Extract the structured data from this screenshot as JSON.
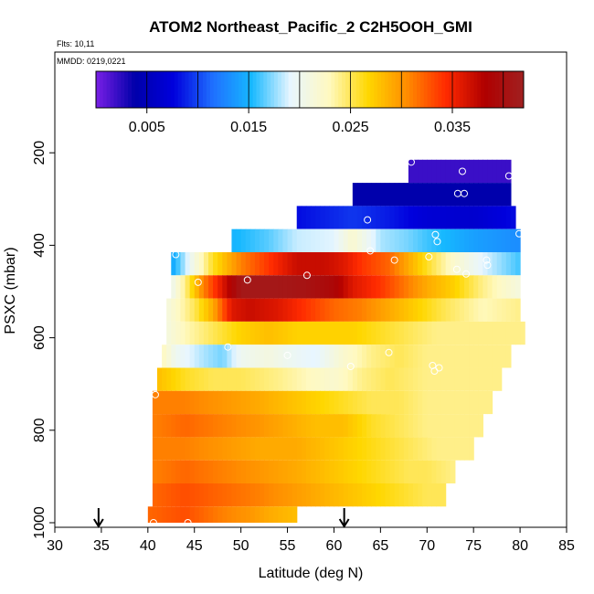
{
  "chart_data": {
    "type": "heatmap",
    "title": "ATOM2 Northeast_Pacific_2 C2H5OOH_GMI",
    "flights_label": "Flts: 10,11",
    "mmdd_label": "MMDD: 0219,0221",
    "xlabel": "Latitude (deg N)",
    "ylabel": "PSXC (mbar)",
    "xlim": [
      30,
      85
    ],
    "ylim": [
      1000,
      0
    ],
    "x_ticks": [
      30,
      35,
      40,
      45,
      50,
      55,
      60,
      65,
      70,
      75,
      80,
      85
    ],
    "y_ticks": [
      200,
      400,
      600,
      800,
      1000
    ],
    "colorbar": {
      "min": 0.0,
      "max": 0.042,
      "tick_values": [
        0.005,
        0.015,
        0.025,
        0.035
      ],
      "tick_labels": [
        "0.005",
        "0.015",
        "0.025",
        "0.035"
      ],
      "divisions": [
        0.0,
        0.005,
        0.01,
        0.015,
        0.02,
        0.025,
        0.03,
        0.035,
        0.04,
        0.042
      ],
      "colors": [
        "#7a1fe6",
        "#0000aa",
        "#0000dd",
        "#1f6fff",
        "#16b8ff",
        "#e8f6ff",
        "#fff9c0",
        "#ffd700",
        "#ff8c00",
        "#ff2a00",
        "#b00000",
        "#a02020"
      ]
    },
    "bands": [
      {
        "p_top": 215,
        "p_bot": 265,
        "lat_min": 68.0,
        "lat_max": 79.0,
        "values": [
          [
            68,
            0.002
          ],
          [
            79,
            0.002
          ]
        ]
      },
      {
        "p_top": 265,
        "p_bot": 315,
        "lat_min": 62.0,
        "lat_max": 79.0,
        "values": [
          [
            62,
            0.004
          ],
          [
            79,
            0.004
          ]
        ]
      },
      {
        "p_top": 315,
        "p_bot": 365,
        "lat_min": 56.0,
        "lat_max": 79.5,
        "values": [
          [
            56,
            0.008
          ],
          [
            62,
            0.0095
          ],
          [
            66,
            0.0085
          ],
          [
            70,
            0.007
          ],
          [
            75,
            0.0065
          ],
          [
            79.5,
            0.008
          ]
        ]
      },
      {
        "p_top": 365,
        "p_bot": 415,
        "lat_min": 49.0,
        "lat_max": 80.0,
        "values": [
          [
            49,
            0.015
          ],
          [
            53,
            0.0165
          ],
          [
            56,
            0.0185
          ],
          [
            60,
            0.019
          ],
          [
            62,
            0.022
          ],
          [
            65,
            0.018
          ],
          [
            68,
            0.017
          ],
          [
            70,
            0.016
          ],
          [
            75,
            0.014
          ],
          [
            80,
            0.013
          ]
        ]
      },
      {
        "p_top": 415,
        "p_bot": 465,
        "lat_min": 42.5,
        "lat_max": 80.0,
        "values": [
          [
            42.5,
            0.014
          ],
          [
            45,
            0.021
          ],
          [
            47,
            0.026
          ],
          [
            50,
            0.031
          ],
          [
            53,
            0.034
          ],
          [
            56,
            0.037
          ],
          [
            59,
            0.037
          ],
          [
            61,
            0.036
          ],
          [
            63,
            0.034
          ],
          [
            66,
            0.032
          ],
          [
            68,
            0.029
          ],
          [
            70,
            0.026
          ],
          [
            73,
            0.022
          ],
          [
            76,
            0.019
          ],
          [
            80,
            0.016
          ]
        ]
      },
      {
        "p_top": 465,
        "p_bot": 515,
        "lat_min": 42.5,
        "lat_max": 80.0,
        "values": [
          [
            42.5,
            0.02
          ],
          [
            44,
            0.024
          ],
          [
            46,
            0.031
          ],
          [
            48,
            0.036
          ],
          [
            50,
            0.041
          ],
          [
            54,
            0.041
          ],
          [
            57,
            0.0405
          ],
          [
            60,
            0.039
          ],
          [
            62,
            0.036
          ],
          [
            65,
            0.034
          ],
          [
            68,
            0.031
          ],
          [
            70,
            0.029
          ],
          [
            73,
            0.027
          ],
          [
            76,
            0.024
          ],
          [
            80,
            0.021
          ]
        ]
      },
      {
        "p_top": 515,
        "p_bot": 565,
        "lat_min": 42.0,
        "lat_max": 80.0,
        "values": [
          [
            42,
            0.021
          ],
          [
            45,
            0.025
          ],
          [
            47,
            0.029
          ],
          [
            49,
            0.036
          ],
          [
            51,
            0.037
          ],
          [
            54,
            0.036
          ],
          [
            57,
            0.034
          ],
          [
            60,
            0.032
          ],
          [
            63,
            0.031
          ],
          [
            66,
            0.029
          ],
          [
            69,
            0.027
          ],
          [
            72,
            0.025
          ],
          [
            76,
            0.023
          ],
          [
            80,
            0.024
          ]
        ]
      },
      {
        "p_top": 565,
        "p_bot": 615,
        "lat_min": 42.0,
        "lat_max": 80.5,
        "values": [
          [
            42,
            0.021
          ],
          [
            44,
            0.023
          ],
          [
            47,
            0.025
          ],
          [
            50,
            0.027
          ],
          [
            53,
            0.028
          ],
          [
            56,
            0.027
          ],
          [
            59,
            0.027
          ],
          [
            62,
            0.027
          ],
          [
            65,
            0.026
          ],
          [
            68,
            0.025
          ],
          [
            71,
            0.024
          ],
          [
            75,
            0.024
          ],
          [
            80.5,
            0.024
          ]
        ]
      },
      {
        "p_top": 615,
        "p_bot": 665,
        "lat_min": 41.5,
        "lat_max": 79.0,
        "values": [
          [
            41.5,
            0.023
          ],
          [
            43,
            0.02
          ],
          [
            46,
            0.018
          ],
          [
            48,
            0.017
          ],
          [
            50,
            0.02
          ],
          [
            53,
            0.021
          ],
          [
            55,
            0.02
          ],
          [
            58,
            0.019
          ],
          [
            61,
            0.022
          ],
          [
            64,
            0.024
          ],
          [
            67,
            0.025
          ],
          [
            70,
            0.024
          ],
          [
            74,
            0.024
          ],
          [
            79,
            0.024
          ]
        ]
      },
      {
        "p_top": 665,
        "p_bot": 715,
        "lat_min": 41.0,
        "lat_max": 78.0,
        "values": [
          [
            41,
            0.028
          ],
          [
            44,
            0.026
          ],
          [
            47,
            0.025
          ],
          [
            50,
            0.025
          ],
          [
            54,
            0.024
          ],
          [
            57,
            0.023
          ],
          [
            60,
            0.022
          ],
          [
            63,
            0.024
          ],
          [
            66,
            0.025
          ],
          [
            70,
            0.024
          ],
          [
            74,
            0.024
          ],
          [
            78,
            0.024
          ]
        ]
      },
      {
        "p_top": 715,
        "p_bot": 765,
        "lat_min": 40.5,
        "lat_max": 77.0,
        "values": [
          [
            40.5,
            0.031
          ],
          [
            44,
            0.031
          ],
          [
            48,
            0.03
          ],
          [
            52,
            0.029
          ],
          [
            55,
            0.028
          ],
          [
            58,
            0.027
          ],
          [
            61,
            0.026
          ],
          [
            64,
            0.025
          ],
          [
            67,
            0.025
          ],
          [
            70,
            0.024
          ],
          [
            73,
            0.024
          ],
          [
            77,
            0.024
          ]
        ]
      },
      {
        "p_top": 765,
        "p_bot": 815,
        "lat_min": 40.5,
        "lat_max": 76.0,
        "values": [
          [
            40.5,
            0.031
          ],
          [
            44,
            0.032
          ],
          [
            48,
            0.031
          ],
          [
            52,
            0.03
          ],
          [
            55,
            0.029
          ],
          [
            58,
            0.028
          ],
          [
            61,
            0.028
          ],
          [
            64,
            0.026
          ],
          [
            67,
            0.025
          ],
          [
            70,
            0.024
          ],
          [
            73,
            0.024
          ],
          [
            76,
            0.024
          ]
        ]
      },
      {
        "p_top": 815,
        "p_bot": 865,
        "lat_min": 40.5,
        "lat_max": 75.0,
        "values": [
          [
            40.5,
            0.031
          ],
          [
            44,
            0.031
          ],
          [
            48,
            0.03
          ],
          [
            52,
            0.029
          ],
          [
            56,
            0.029
          ],
          [
            59,
            0.028
          ],
          [
            62,
            0.027
          ],
          [
            65,
            0.026
          ],
          [
            68,
            0.025
          ],
          [
            71,
            0.024
          ],
          [
            75,
            0.024
          ]
        ]
      },
      {
        "p_top": 865,
        "p_bot": 915,
        "lat_min": 40.5,
        "lat_max": 73.0,
        "values": [
          [
            40.5,
            0.031
          ],
          [
            44,
            0.032
          ],
          [
            48,
            0.031
          ],
          [
            52,
            0.03
          ],
          [
            56,
            0.029
          ],
          [
            59,
            0.028
          ],
          [
            62,
            0.027
          ],
          [
            65,
            0.026
          ],
          [
            68,
            0.025
          ],
          [
            70,
            0.025
          ],
          [
            73,
            0.024
          ]
        ]
      },
      {
        "p_top": 915,
        "p_bot": 965,
        "lat_min": 40.5,
        "lat_max": 72.0,
        "values": [
          [
            40.5,
            0.032
          ],
          [
            44,
            0.033
          ],
          [
            48,
            0.032
          ],
          [
            52,
            0.031
          ],
          [
            55,
            0.03
          ],
          [
            58,
            0.029
          ],
          [
            61,
            0.028
          ],
          [
            64,
            0.027
          ],
          [
            67,
            0.026
          ],
          [
            70,
            0.025
          ],
          [
            72,
            0.025
          ]
        ]
      },
      {
        "p_top": 965,
        "p_bot": 1000,
        "lat_min": 40.0,
        "lat_max": 56.0,
        "values": [
          [
            40,
            0.032
          ],
          [
            44,
            0.033
          ],
          [
            48,
            0.031
          ],
          [
            51,
            0.03
          ],
          [
            53,
            0.029
          ],
          [
            56,
            0.028
          ]
        ]
      }
    ],
    "points": [
      [
        68.3,
        220
      ],
      [
        73.8,
        240
      ],
      [
        78.8,
        250
      ],
      [
        73.3,
        288
      ],
      [
        74.0,
        288
      ],
      [
        63.6,
        345
      ],
      [
        70.9,
        377
      ],
      [
        79.9,
        375
      ],
      [
        71.1,
        392
      ],
      [
        63.9,
        412
      ],
      [
        66.5,
        432
      ],
      [
        43.0,
        420
      ],
      [
        70.2,
        425
      ],
      [
        76.4,
        432
      ],
      [
        76.5,
        443
      ],
      [
        73.2,
        452
      ],
      [
        74.2,
        462
      ],
      [
        57.1,
        465
      ],
      [
        50.7,
        475
      ],
      [
        45.4,
        480
      ],
      [
        48.6,
        620
      ],
      [
        55.0,
        638
      ],
      [
        61.8,
        662
      ],
      [
        65.9,
        632
      ],
      [
        70.6,
        660
      ],
      [
        71.3,
        665
      ],
      [
        70.8,
        672
      ],
      [
        40.8,
        723
      ],
      [
        40.6,
        1000
      ],
      [
        44.3,
        1000
      ]
    ],
    "arrows_lat": [
      34.7,
      61.1
    ]
  }
}
